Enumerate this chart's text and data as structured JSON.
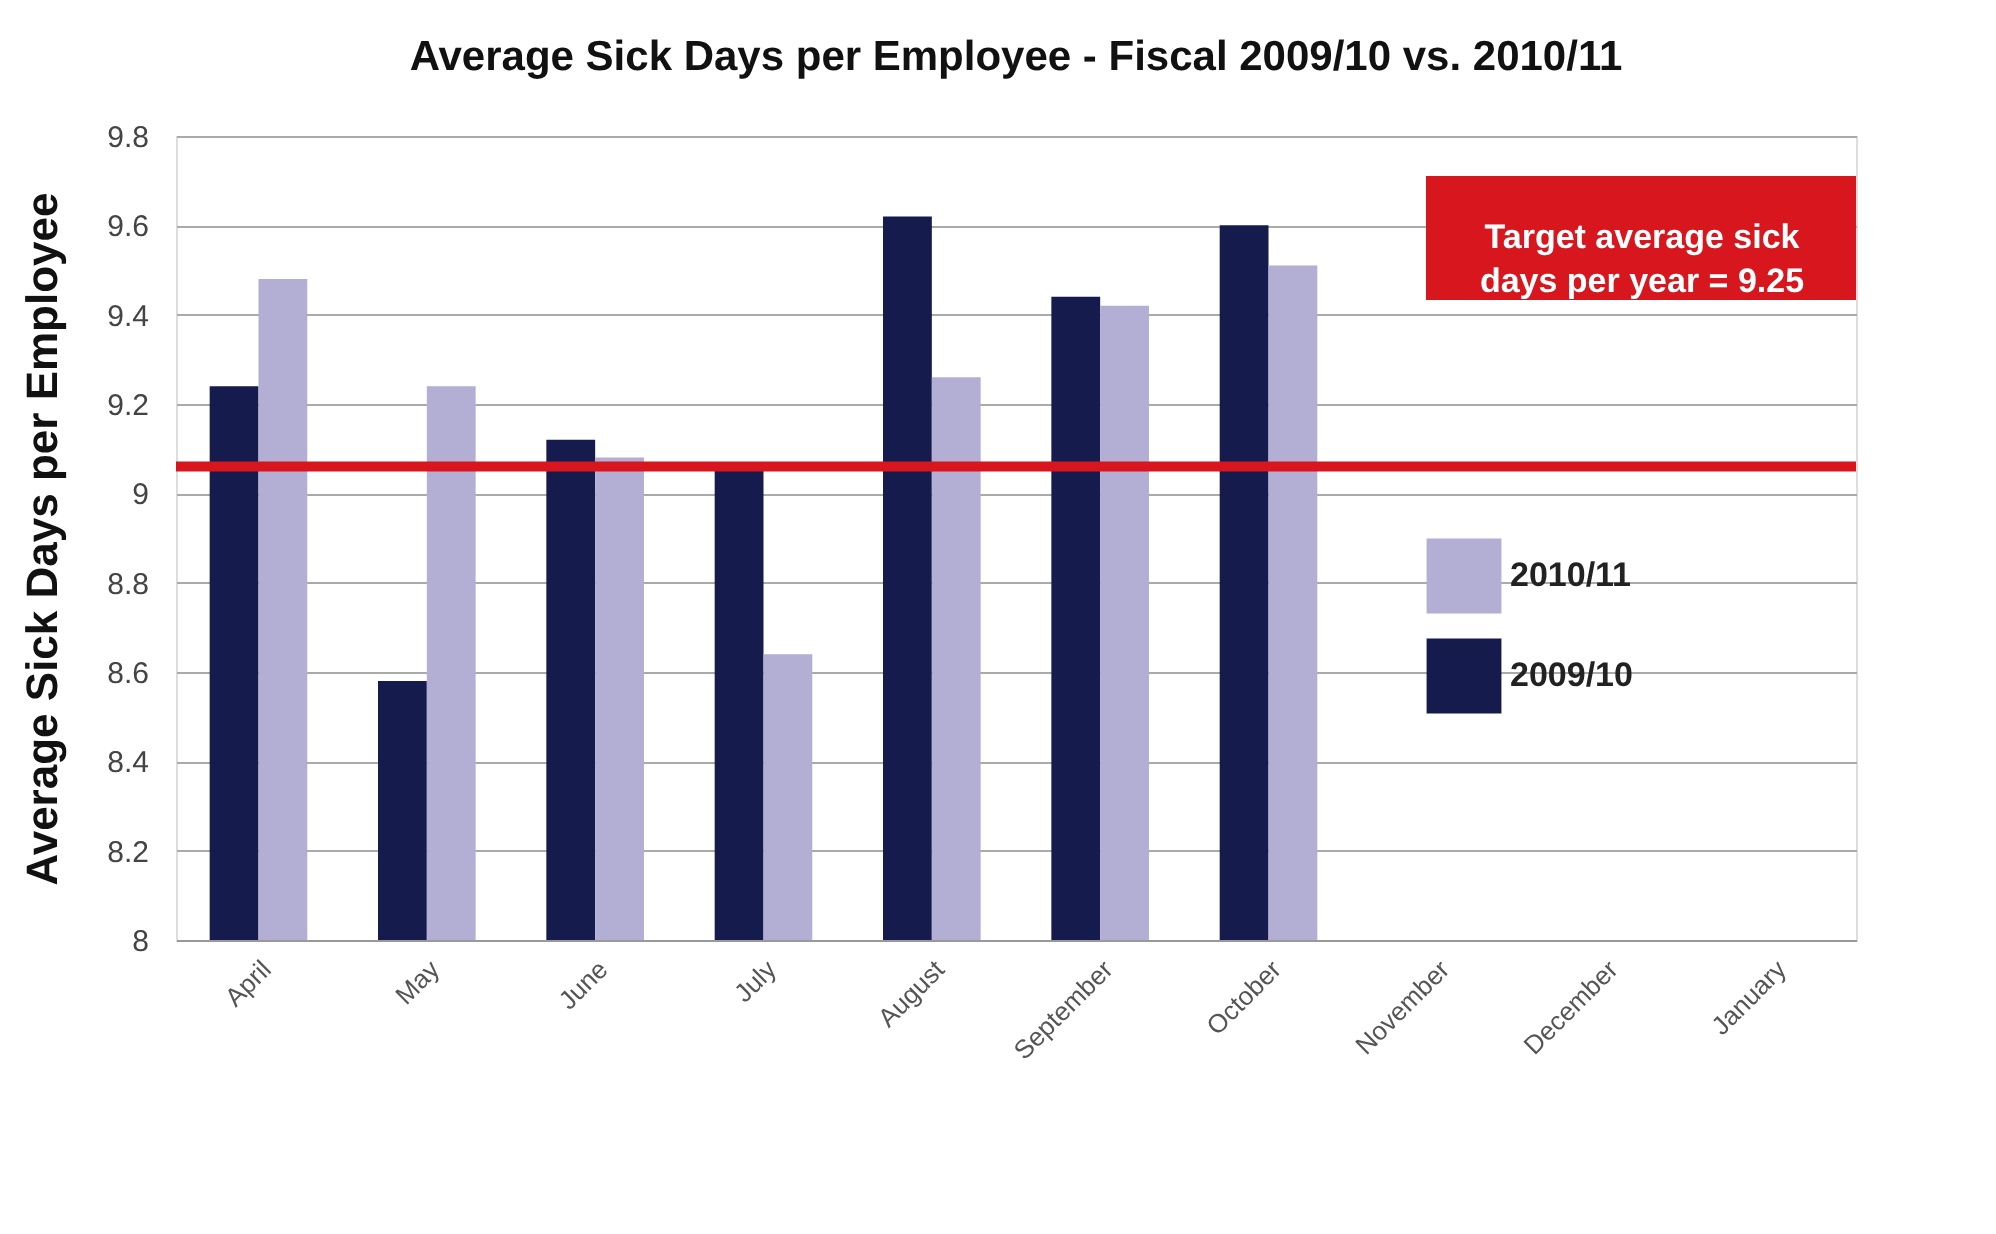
{
  "chart_data": {
    "type": "bar",
    "title": "Average Sick Days per Employee - Fiscal  2009/10 vs. 2010/11",
    "ylabel": "Average Sick Days per Employee",
    "categories": [
      "April",
      "May",
      "June",
      "July",
      "August",
      "September",
      "October",
      "November",
      "December",
      "January"
    ],
    "series": [
      {
        "name": "2009/10",
        "color": "#161b4d",
        "values": [
          9.24,
          8.58,
          9.12,
          9.06,
          9.62,
          9.44,
          9.6,
          null,
          null,
          null
        ]
      },
      {
        "name": "2010/11",
        "color": "#b3aed3",
        "values": [
          9.48,
          9.24,
          9.08,
          8.64,
          9.26,
          9.42,
          9.51,
          null,
          null,
          null
        ]
      }
    ],
    "ylim": [
      8,
      9.8
    ],
    "yticks": [
      8,
      8.2,
      8.4,
      8.6,
      8.8,
      9,
      9.2,
      9.4,
      9.6,
      9.8
    ],
    "grid": "y",
    "legend": "right",
    "annotations": [
      "Target average sick days per year = 9.25"
    ],
    "ref_lines": [
      {
        "axis": "y",
        "value": 9.06,
        "color": "#d7161d"
      }
    ]
  }
}
